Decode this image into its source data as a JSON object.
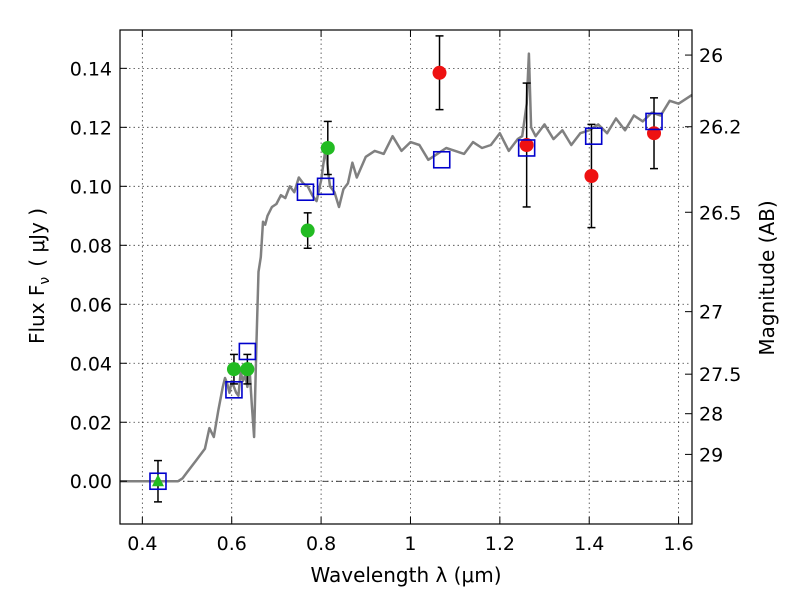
{
  "chart_data": {
    "type": "scatter",
    "xlabel": "Wavelength  λ (μm)",
    "ylabel": "Flux  F",
    "ylabel_sub": "ν",
    "ylabel_unit": "( μJy )",
    "ylabel_right": "Magnitude (AB)",
    "xlim": [
      0.35,
      1.63
    ],
    "ylim": [
      -0.0145,
      0.153
    ],
    "grid": true,
    "x_ticks": [
      0.4,
      0.6,
      0.8,
      1.0,
      1.2,
      1.4,
      1.6
    ],
    "x_tick_labels": [
      "0.4",
      "0.6",
      "0.8",
      "1",
      "1.2",
      "1.4",
      "1.6"
    ],
    "y_ticks": [
      0.0,
      0.02,
      0.04,
      0.06,
      0.08,
      0.1,
      0.12,
      0.14
    ],
    "y_tick_labels": [
      "0.00",
      "0.02",
      "0.04",
      "0.06",
      "0.08",
      "0.10",
      "0.12",
      "0.14"
    ],
    "right_ticks": [
      {
        "label": "26",
        "flux": 0.1445
      },
      {
        "label": "26.2",
        "flux": 0.1202
      },
      {
        "label": "26.5",
        "flux": 0.0912
      },
      {
        "label": "27",
        "flux": 0.0575
      },
      {
        "label": "27.5",
        "flux": 0.0363
      },
      {
        "label": "28",
        "flux": 0.0229
      },
      {
        "label": "29",
        "flux": 0.0091
      }
    ],
    "zero_line": 0.0,
    "colors": {
      "model": "#808080",
      "model_boxes": "#0000cc",
      "green_points": "#22bb22",
      "red_points": "#ee1111",
      "error_bars": "#000000"
    },
    "series": [
      {
        "marker": "line",
        "x": [
          0.35,
          0.48,
          0.49,
          0.5,
          0.52,
          0.54,
          0.55,
          0.56,
          0.57,
          0.58,
          0.585,
          0.59,
          0.595,
          0.6,
          0.61,
          0.615,
          0.62,
          0.625,
          0.63,
          0.635,
          0.64,
          0.645,
          0.65,
          0.655,
          0.66,
          0.665,
          0.67,
          0.675,
          0.68,
          0.69,
          0.7,
          0.71,
          0.72,
          0.73,
          0.74,
          0.75,
          0.76,
          0.77,
          0.78,
          0.79,
          0.8,
          0.81,
          0.815,
          0.82,
          0.83,
          0.84,
          0.85,
          0.86,
          0.87,
          0.88,
          0.9,
          0.92,
          0.94,
          0.96,
          0.98,
          1.0,
          1.02,
          1.04,
          1.06,
          1.08,
          1.1,
          1.12,
          1.14,
          1.16,
          1.18,
          1.2,
          1.22,
          1.24,
          1.25,
          1.26,
          1.265,
          1.27,
          1.28,
          1.3,
          1.32,
          1.34,
          1.36,
          1.38,
          1.4,
          1.42,
          1.44,
          1.46,
          1.48,
          1.5,
          1.52,
          1.54,
          1.56,
          1.58,
          1.6,
          1.63
        ],
        "y": [
          0.0,
          0.0,
          0.001,
          0.003,
          0.007,
          0.011,
          0.018,
          0.015,
          0.024,
          0.032,
          0.035,
          0.033,
          0.03,
          0.034,
          0.03,
          0.029,
          0.037,
          0.034,
          0.036,
          0.032,
          0.038,
          0.026,
          0.015,
          0.045,
          0.071,
          0.076,
          0.088,
          0.087,
          0.09,
          0.093,
          0.094,
          0.097,
          0.096,
          0.1,
          0.098,
          0.103,
          0.101,
          0.1,
          0.097,
          0.095,
          0.102,
          0.113,
          0.106,
          0.1,
          0.098,
          0.093,
          0.099,
          0.101,
          0.108,
          0.103,
          0.11,
          0.112,
          0.111,
          0.117,
          0.112,
          0.115,
          0.114,
          0.109,
          0.111,
          0.113,
          0.112,
          0.111,
          0.115,
          0.113,
          0.114,
          0.118,
          0.112,
          0.116,
          0.117,
          0.128,
          0.145,
          0.12,
          0.117,
          0.121,
          0.116,
          0.119,
          0.114,
          0.118,
          0.119,
          0.121,
          0.118,
          0.123,
          0.119,
          0.124,
          0.122,
          0.125,
          0.124,
          0.129,
          0.128,
          0.131
        ]
      },
      {
        "marker": "open-square",
        "x": [
          0.435,
          0.605,
          0.635,
          0.765,
          0.81,
          1.07,
          1.26,
          1.41,
          1.545
        ],
        "y": [
          0.0,
          0.031,
          0.044,
          0.098,
          0.1,
          0.109,
          0.113,
          0.117,
          0.122
        ]
      },
      {
        "marker": "filled-circle",
        "x": [
          0.605,
          0.635,
          0.77,
          0.815
        ],
        "y": [
          0.038,
          0.038,
          0.085,
          0.113
        ],
        "yerr": [
          0.005,
          0.005,
          0.006,
          0.009
        ]
      },
      {
        "marker": "filled-circle",
        "x": [
          1.065,
          1.26,
          1.405,
          1.545
        ],
        "y": [
          0.1385,
          0.114,
          0.1035,
          0.118
        ],
        "yerr": [
          0.0125,
          0.021,
          0.0175,
          0.012
        ]
      },
      {
        "marker": "filled-triangle",
        "x": [
          0.435
        ],
        "y": [
          0.0
        ],
        "yerr": [
          0.007
        ]
      }
    ]
  }
}
